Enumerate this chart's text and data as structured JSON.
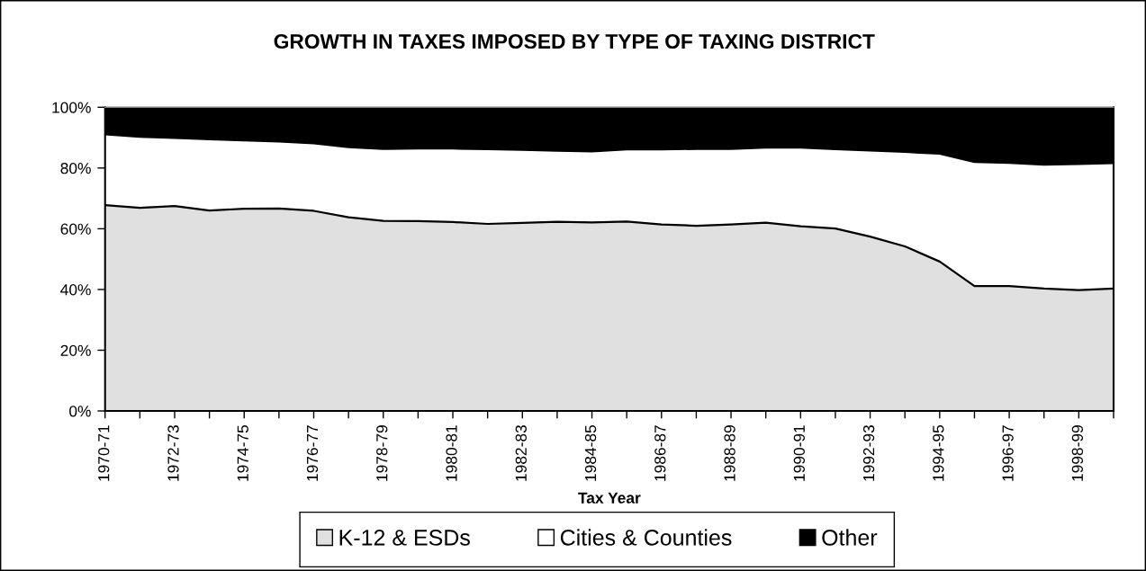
{
  "chart_data": {
    "type": "area",
    "stacked": true,
    "title": "GROWTH IN TAXES IMPOSED BY TYPE OF TAXING DISTRICT",
    "xlabel": "Tax Year",
    "categories": [
      "1970-71",
      null,
      "1972-73",
      null,
      "1974-75",
      null,
      "1976-77",
      null,
      "1978-79",
      null,
      "1980-81",
      null,
      "1982-83",
      null,
      "1984-85",
      null,
      "1986-87",
      null,
      "1988-89",
      null,
      "1990-91",
      null,
      "1992-93",
      null,
      "1994-95",
      null,
      "1996-97",
      null,
      "1998-99",
      null
    ],
    "series": [
      {
        "name": "K-12 & ESDs",
        "color": "#e0e0e0",
        "values": [
          67.8,
          66.9,
          67.5,
          66.0,
          66.6,
          66.7,
          65.9,
          63.8,
          62.6,
          62.5,
          62.2,
          61.6,
          61.9,
          62.3,
          62.1,
          62.4,
          61.4,
          61.0,
          61.4,
          62.0,
          60.8,
          60.1,
          57.4,
          54.2,
          49.2,
          41.1,
          41.1,
          40.3,
          39.8,
          40.3
        ]
      },
      {
        "name": "Cities & Counties",
        "color": "#ffffff",
        "values": [
          23.3,
          23.4,
          22.4,
          23.5,
          22.5,
          22.0,
          22.2,
          23.1,
          23.7,
          23.9,
          24.2,
          24.6,
          24.1,
          23.4,
          23.4,
          23.7,
          24.7,
          25.3,
          24.9,
          24.7,
          25.9,
          26.1,
          28.4,
          31.1,
          35.5,
          40.9,
          40.6,
          40.8,
          41.5,
          41.3
        ]
      },
      {
        "name": "Other",
        "color": "#000000",
        "values": [
          8.9,
          9.7,
          10.1,
          10.5,
          10.9,
          11.3,
          11.9,
          13.1,
          13.7,
          13.6,
          13.6,
          13.8,
          14.0,
          14.3,
          14.5,
          13.9,
          13.9,
          13.7,
          13.7,
          13.3,
          13.3,
          13.8,
          14.2,
          14.7,
          15.3,
          18.0,
          18.3,
          18.9,
          18.7,
          18.4
        ]
      }
    ],
    "ylim": [
      0,
      100
    ],
    "yticks": [
      {
        "value": 0,
        "label": "0%"
      },
      {
        "value": 20,
        "label": "20%"
      },
      {
        "value": 40,
        "label": "40%"
      },
      {
        "value": 60,
        "label": "60%"
      },
      {
        "value": 80,
        "label": "80%"
      },
      {
        "value": 100,
        "label": "100%"
      }
    ],
    "legend": "bottom"
  }
}
